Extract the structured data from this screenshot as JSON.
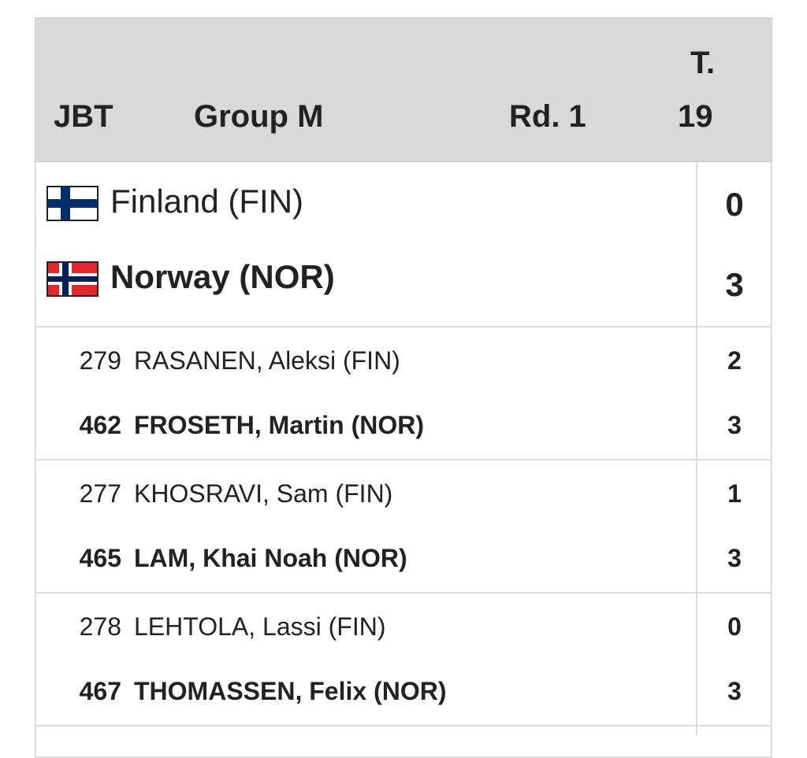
{
  "header": {
    "event": "JBT",
    "group": "Group M",
    "round": "Rd. 1",
    "table_label": "T.",
    "table_number": "19"
  },
  "teams": [
    {
      "name": "Finland (FIN)",
      "score": "0"
    },
    {
      "name": "Norway (NOR)",
      "score": "3"
    }
  ],
  "matches": [
    [
      {
        "number": "279",
        "name": "RASANEN, Aleksi (FIN)",
        "score": "2"
      },
      {
        "number": "462",
        "name": "FROSETH, Martin (NOR)",
        "score": "3"
      }
    ],
    [
      {
        "number": "277",
        "name": "KHOSRAVI, Sam (FIN)",
        "score": "1"
      },
      {
        "number": "465",
        "name": "LAM, Khai Noah (NOR)",
        "score": "3"
      }
    ],
    [
      {
        "number": "278",
        "name": "LEHTOLA, Lassi (FIN)",
        "score": "0"
      },
      {
        "number": "467",
        "name": "THOMASSEN, Felix (NOR)",
        "score": "3"
      }
    ]
  ]
}
